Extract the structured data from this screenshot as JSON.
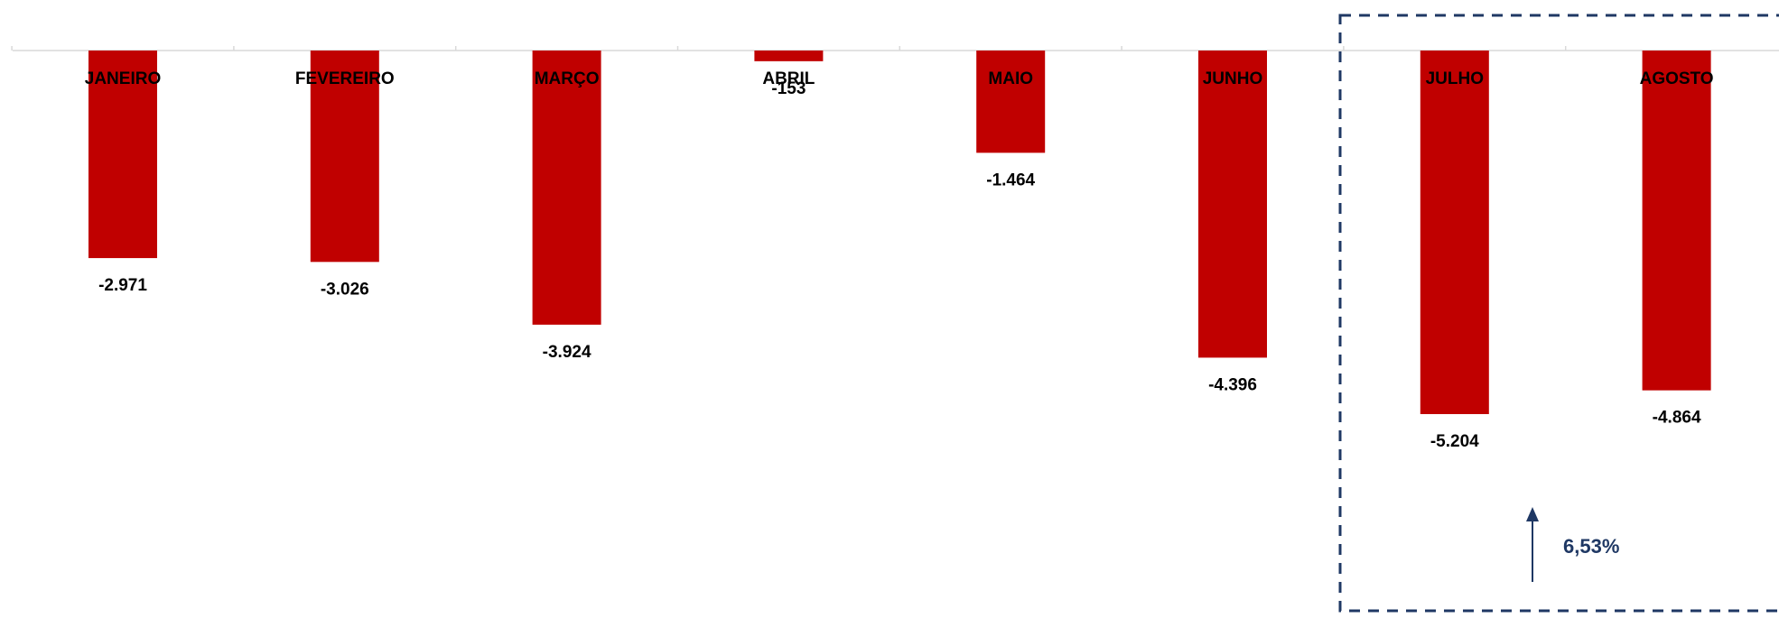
{
  "chart_data": {
    "type": "bar",
    "categories": [
      "JANEIRO",
      "FEVEREIRO",
      "MARÇO",
      "ABRIL",
      "MAIO",
      "JUNHO",
      "JULHO",
      "AGOSTO"
    ],
    "values": [
      -2971,
      -3026,
      -3924,
      -153,
      -1464,
      -4396,
      -5204,
      -4864
    ],
    "value_labels": [
      "-2.971",
      "-3.026",
      "-3.924",
      "-153",
      "-1.464",
      "-4.396",
      "-5.204",
      "-4.864"
    ],
    "title": "",
    "xlabel": "",
    "ylabel": "",
    "ylim": [
      -5204,
      0
    ],
    "grid": false,
    "legend": "none",
    "highlight": {
      "categories": [
        "JULHO",
        "AGOSTO"
      ],
      "change_label": "6,53%",
      "arrow_direction": "up"
    }
  },
  "colors": {
    "bar": "#c00000",
    "axis": "#d9d9d9",
    "text": "#000000",
    "highlight_box": "#1f3864",
    "annotation": "#1f3864"
  }
}
